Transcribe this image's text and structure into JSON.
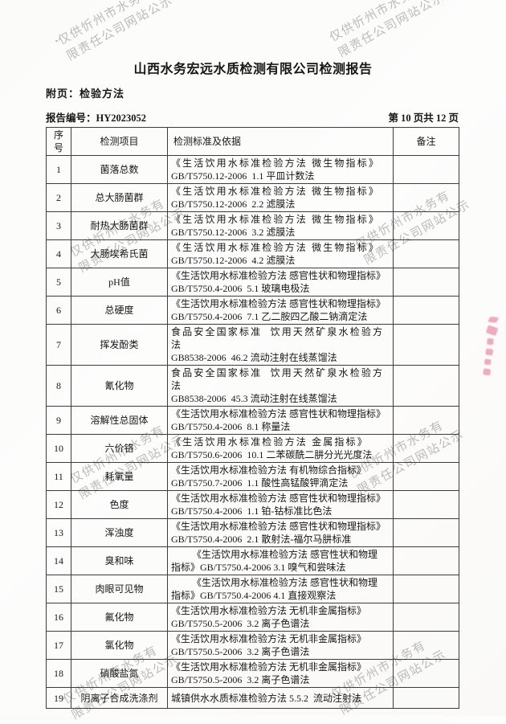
{
  "page": {
    "title": "山西水务宏远水质检测有限公司检测报告",
    "subtitle": "附页：检验方法",
    "report_no": "报告编号：HY2023052",
    "page_indicator": "第 10 页共 12 页"
  },
  "watermark": {
    "line1": "仅供忻州市水务有",
    "line2": "限责任公司网站公示",
    "color": "#ababab"
  },
  "stamp_bleed_color": "#e06a92",
  "table": {
    "columns": [
      "序号",
      "检测项目",
      "检测标准及依据",
      "备注"
    ],
    "rows": [
      {
        "no": "1",
        "item": "菌落总数",
        "standard_line1": "《生活饮用水标准检验方法 微生物指标》",
        "standard_line2": "GB/T5750.12-2006  1.1 平皿计数法",
        "remark": "",
        "spread": true
      },
      {
        "no": "2",
        "item": "总大肠菌群",
        "standard_line1": "《生活饮用水标准检验方法 微生物指标》",
        "standard_line2": "GB/T5750.12-2006  2.2 滤膜法",
        "remark": "",
        "spread": true
      },
      {
        "no": "3",
        "item": "耐热大肠菌群",
        "standard_line1": "《生活饮用水标准检验方法 微生物指标》",
        "standard_line2": "GB/T5750.12-2006  3.2 滤膜法",
        "remark": "",
        "spread": true
      },
      {
        "no": "4",
        "item": "大肠埃希氏菌",
        "standard_line1": "《生活饮用水标准检验方法 微生物指标》",
        "standard_line2": "GB/T5750.12-2006  4.2 滤膜法",
        "remark": "",
        "spread": true
      },
      {
        "no": "5",
        "item": "pH值",
        "standard_line1": "《生活饮用水标准检验方法 感官性状和物理指标》",
        "standard_line2": "GB/T5750.4-2006  5.1 玻璃电极法",
        "remark": "",
        "spread": false
      },
      {
        "no": "6",
        "item": "总硬度",
        "standard_line1": "《生活饮用水标准检验方法 感官性状和物理指标》",
        "standard_line2": "GB/T5750.4-2006  7.1 乙二胺四乙酸二钠滴定法",
        "remark": "",
        "spread": false
      },
      {
        "no": "7",
        "item": "挥发酚类",
        "standard_line1": "食品安全国家标准  饮用天然矿泉水检验方法",
        "standard_line2": "GB8538-2006  46.2 流动注射在线蒸馏法",
        "remark": "",
        "spread": true
      },
      {
        "no": "8",
        "item": "氰化物",
        "standard_line1": "食品安全国家标准  饮用天然矿泉水检验方法",
        "standard_line2": "GB8538-2006  45.3 流动注射在线蒸馏法",
        "remark": "",
        "spread": true
      },
      {
        "no": "9",
        "item": "溶解性总固体",
        "standard_line1": "《生活饮用水标准检验方法 感官性状和物理指标》",
        "standard_line2": "GB/T5750.4-2006  8.1 称量法",
        "remark": "",
        "spread": false
      },
      {
        "no": "10",
        "item": "六价铬",
        "standard_line1": "《生活饮用水标准检验方法 金属指标》",
        "standard_line2": "GB/T5750.6-2006  10.1 二苯碳酰二肼分光光度法",
        "remark": "",
        "spread": true
      },
      {
        "no": "11",
        "item": "耗氧量",
        "standard_line1": "《生活饮用水标准检验方法 有机物综合指标》",
        "standard_line2": "GB/T5750.7-2006  1.1 酸性高锰酸钾滴定法",
        "remark": "",
        "spread": false
      },
      {
        "no": "12",
        "item": "色度",
        "standard_line1": "《生活饮用水标准检验方法 感官性状和物理指标》",
        "standard_line2": "GB/T5750.4-2006  1.1 铂-钴标准比色法",
        "remark": "",
        "spread": false
      },
      {
        "no": "13",
        "item": "浑浊度",
        "standard_line1": "《生活饮用水标准检验方法 感官性状和物理指标》",
        "standard_line2": "GB/T5750.4-2006  2.1 散射法-福尔马肼标准",
        "remark": "",
        "spread": false
      },
      {
        "no": "14",
        "item": "臭和味",
        "standard_line1": "《生活饮用水标准检验方法 感官性状和物理",
        "standard_line2": "指标》GB/T5750.4-2006 3.1 嗅气和尝味法",
        "remark": "",
        "spread": false,
        "indent": true
      },
      {
        "no": "15",
        "item": "肉眼可见物",
        "standard_line1": "《生活饮用水标准检验方法 感官性状和物理",
        "standard_line2": "指标》GB/T5750.4-2006 4.1 直接观察法",
        "remark": "",
        "spread": false,
        "indent": true
      },
      {
        "no": "16",
        "item": "氟化物",
        "standard_line1": "《生活饮用水标准检验方法 无机非金属指标》",
        "standard_line2": "GB/T5750.5-2006  3.2 离子色谱法",
        "remark": "",
        "spread": false
      },
      {
        "no": "17",
        "item": "氯化物",
        "standard_line1": "《生活饮用水标准检验方法 无机非金属指标》",
        "standard_line2": "GB/T5750.5-2006  3.2 离子色谱法",
        "remark": "",
        "spread": false
      },
      {
        "no": "18",
        "item": "硝酸盐氮",
        "standard_line1": "《生活饮用水标准检验方法 无机非金属指标》",
        "standard_line2": "GB/T5750.5-2006  3.2 离子色谱法",
        "remark": "",
        "spread": false
      },
      {
        "no": "19",
        "item": "阴离子合成洗涤剂",
        "standard_line1": "城镇供水水质标准检验方法 5.5.2  流动注射法",
        "standard_line2": "",
        "remark": "",
        "spread": false
      }
    ]
  }
}
